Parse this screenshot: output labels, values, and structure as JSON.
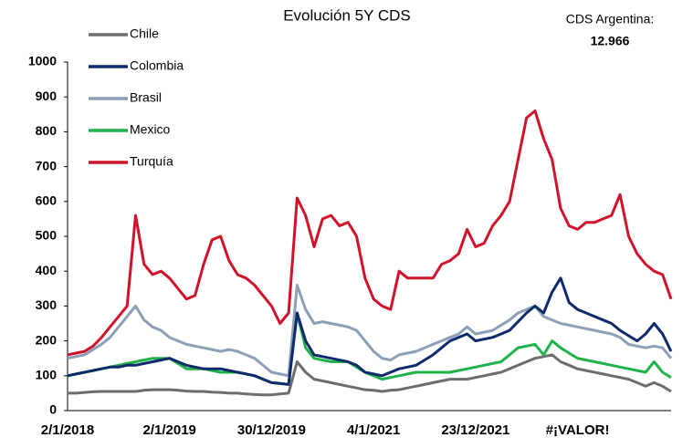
{
  "chart_data": {
    "type": "line",
    "title": "Evolución 5Y CDS",
    "annotations": [
      "CDS Argentina:",
      "12.966"
    ],
    "categories": [
      "2/1/2018",
      null,
      null,
      null,
      null,
      null,
      null,
      null,
      null,
      null,
      null,
      null,
      "2/1/2019",
      null,
      null,
      null,
      null,
      null,
      null,
      null,
      null,
      null,
      null,
      null,
      "30/12/2019",
      null,
      null,
      null,
      null,
      null,
      null,
      null,
      null,
      null,
      null,
      null,
      "4/1/2021",
      null,
      null,
      null,
      null,
      null,
      null,
      null,
      null,
      null,
      null,
      null,
      "23/12/2021",
      null,
      null,
      null,
      null,
      null,
      null,
      null,
      null,
      null,
      null,
      null,
      "#¡VALOR!",
      null,
      null,
      null,
      null,
      null,
      null,
      null,
      null,
      null,
      null,
      null
    ],
    "series": [
      {
        "name": "Chile",
        "color": "#6d6d6d",
        "values": [
          50,
          50,
          52,
          54,
          55,
          55,
          55,
          55,
          55,
          58,
          60,
          60,
          60,
          58,
          56,
          55,
          55,
          53,
          52,
          50,
          50,
          48,
          46,
          45,
          45,
          48,
          50,
          140,
          110,
          90,
          85,
          80,
          75,
          70,
          65,
          60,
          58,
          55,
          58,
          60,
          65,
          70,
          75,
          80,
          85,
          90,
          90,
          90,
          95,
          100,
          105,
          110,
          120,
          130,
          140,
          150,
          155,
          160,
          140,
          130,
          120,
          115,
          110,
          105,
          100,
          95,
          90,
          80,
          70,
          80,
          70,
          55
        ]
      },
      {
        "name": "Colombia",
        "color": "#0d2a6b",
        "values": [
          100,
          105,
          110,
          115,
          120,
          125,
          125,
          130,
          130,
          135,
          140,
          145,
          150,
          140,
          130,
          125,
          120,
          120,
          120,
          115,
          110,
          105,
          100,
          90,
          80,
          78,
          75,
          280,
          200,
          160,
          155,
          150,
          145,
          140,
          130,
          110,
          105,
          100,
          110,
          120,
          125,
          130,
          145,
          160,
          180,
          200,
          210,
          220,
          200,
          205,
          210,
          220,
          230,
          255,
          280,
          300,
          280,
          340,
          380,
          310,
          290,
          280,
          270,
          260,
          250,
          230,
          215,
          200,
          220,
          250,
          220,
          170
        ]
      },
      {
        "name": "Brasil",
        "color": "#8c9fb7",
        "values": [
          150,
          155,
          160,
          175,
          190,
          210,
          240,
          270,
          300,
          260,
          240,
          230,
          210,
          200,
          190,
          185,
          180,
          175,
          170,
          175,
          170,
          160,
          150,
          130,
          110,
          105,
          100,
          360,
          290,
          250,
          255,
          250,
          245,
          240,
          230,
          200,
          170,
          150,
          145,
          160,
          165,
          170,
          180,
          190,
          200,
          210,
          220,
          240,
          220,
          225,
          230,
          245,
          260,
          280,
          290,
          300,
          270,
          260,
          250,
          245,
          240,
          235,
          230,
          225,
          220,
          210,
          190,
          185,
          180,
          185,
          180,
          150
        ]
      },
      {
        "name": "Mexico",
        "color": "#1fb24a",
        "values": [
          100,
          105,
          110,
          115,
          120,
          125,
          130,
          135,
          140,
          145,
          150,
          150,
          150,
          135,
          120,
          120,
          120,
          115,
          110,
          110,
          110,
          105,
          100,
          90,
          80,
          78,
          75,
          280,
          180,
          150,
          145,
          140,
          140,
          140,
          125,
          110,
          100,
          90,
          95,
          100,
          105,
          110,
          110,
          110,
          110,
          110,
          115,
          120,
          125,
          130,
          135,
          140,
          160,
          180,
          185,
          190,
          160,
          200,
          180,
          165,
          150,
          145,
          140,
          135,
          130,
          125,
          120,
          115,
          110,
          140,
          110,
          95
        ]
      },
      {
        "name": "Turquía",
        "color": "#d0122b",
        "values": [
          160,
          165,
          170,
          185,
          210,
          240,
          270,
          300,
          560,
          420,
          390,
          400,
          380,
          350,
          320,
          330,
          420,
          490,
          500,
          430,
          390,
          380,
          360,
          330,
          300,
          250,
          280,
          610,
          560,
          470,
          550,
          560,
          530,
          540,
          500,
          380,
          320,
          300,
          290,
          400,
          380,
          380,
          380,
          380,
          420,
          430,
          450,
          520,
          470,
          480,
          530,
          560,
          600,
          720,
          840,
          860,
          780,
          720,
          580,
          530,
          520,
          540,
          540,
          550,
          560,
          620,
          500,
          450,
          420,
          400,
          390,
          320
        ]
      }
    ],
    "ylim": [
      0,
      1000
    ],
    "yticks": [
      0,
      100,
      200,
      300,
      400,
      500,
      600,
      700,
      800,
      900,
      1000
    ],
    "grid": false
  }
}
